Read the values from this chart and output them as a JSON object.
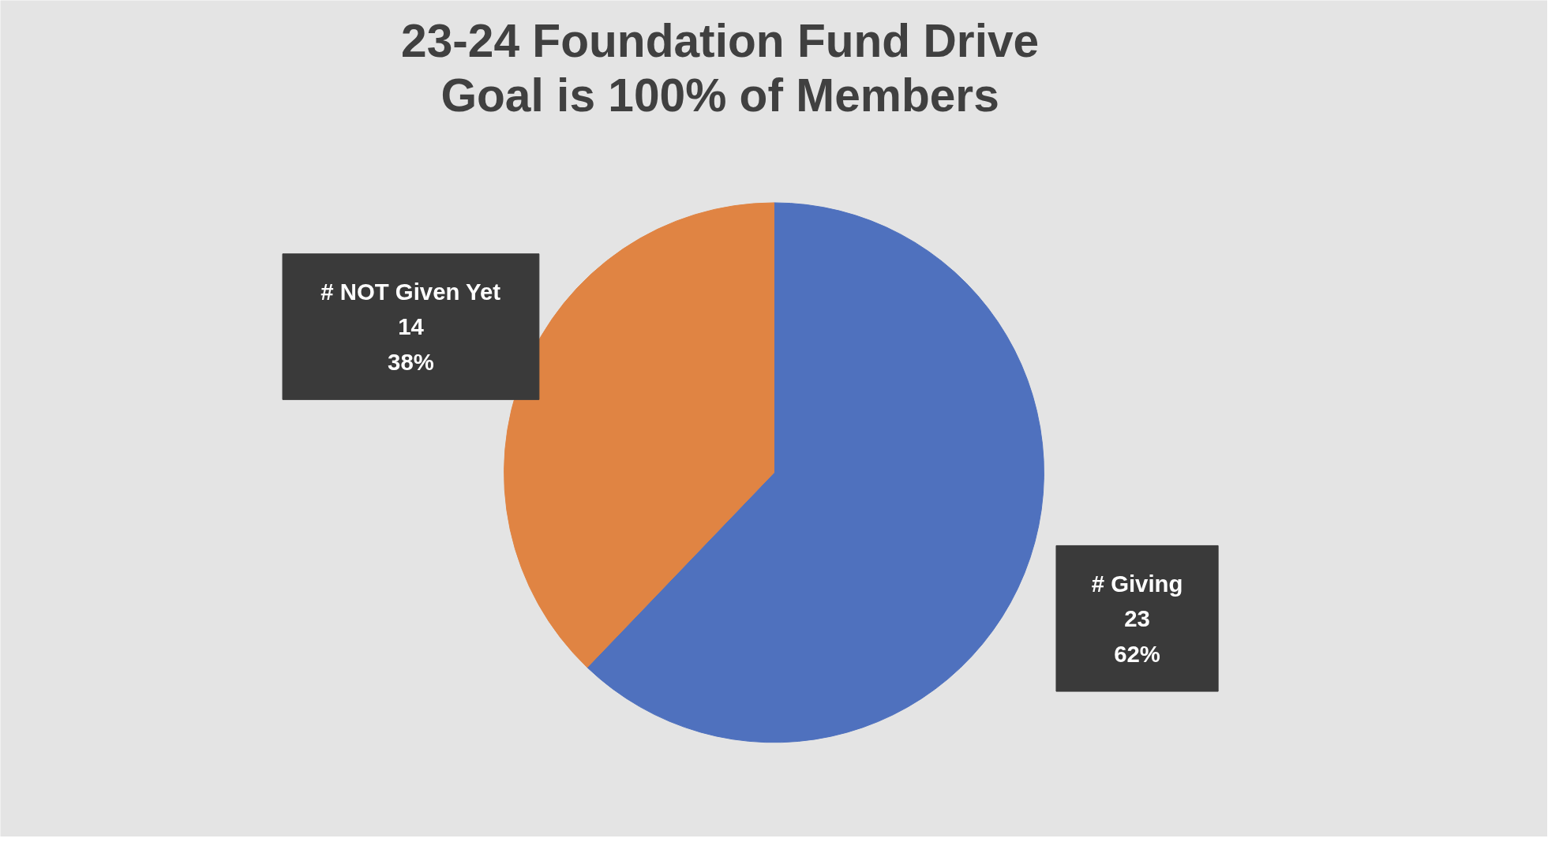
{
  "chart_data": {
    "type": "pie",
    "title": "23-24 Foundation Fund Drive\nGoal is 100% of Members",
    "categories": [
      "# Giving",
      "# NOT Given Yet"
    ],
    "values": [
      23,
      14
    ],
    "colors": [
      "#4f71be",
      "#e08443"
    ],
    "value_labels": [
      "23\n62%",
      "14\n38%"
    ]
  }
}
